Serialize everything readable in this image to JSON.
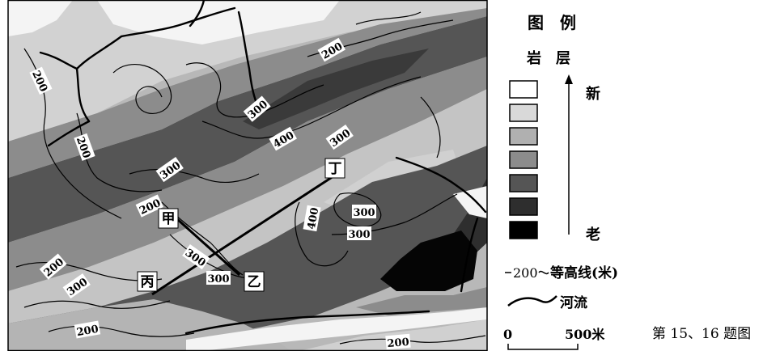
{
  "legend": {
    "title": "图　例",
    "strata_label": "岩　层",
    "new_label": "新",
    "old_label": "老",
    "strata_colors": [
      "#ffffff",
      "#d9d9d9",
      "#b0b0b0",
      "#8c8c8c",
      "#555555",
      "#2e2e2e",
      "#000000"
    ],
    "contour_item": "等高线(米)",
    "contour_sample_value": "200",
    "river_item": "河流",
    "scale_zero": "0",
    "scale_value": "500米"
  },
  "caption": "第 15、16 题图",
  "map": {
    "places": {
      "jia": "甲",
      "yi": "乙",
      "bing": "丙",
      "ding": "丁"
    },
    "contour_labels": [
      "200",
      "200",
      "200",
      "300",
      "400",
      "300",
      "300",
      "200",
      "300",
      "400",
      "300",
      "300",
      "200",
      "300",
      "200",
      "300",
      "200"
    ]
  }
}
